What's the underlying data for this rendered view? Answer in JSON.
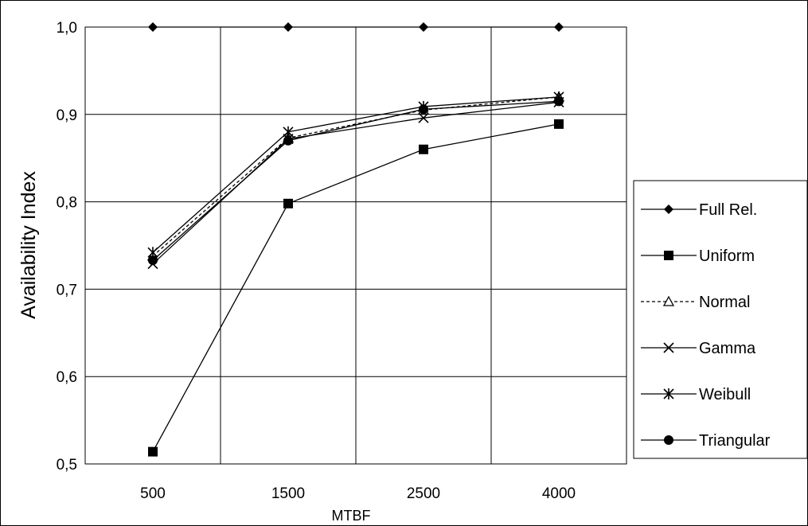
{
  "chart_data": {
    "type": "line",
    "title": "",
    "xlabel": "MTBF",
    "ylabel": "Availability Index",
    "categories": [
      "500",
      "1500",
      "2500",
      "4000"
    ],
    "yticks": [
      "0,5",
      "0,6",
      "0,7",
      "0,8",
      "0,9",
      "1,0"
    ],
    "ylim": [
      0.5,
      1.0
    ],
    "grid": true,
    "legend_position": "right",
    "series": [
      {
        "name": "Full Rel.",
        "marker": "diamond",
        "dash": "solid",
        "values": [
          1.0,
          1.0,
          1.0,
          1.0
        ]
      },
      {
        "name": "Uniform",
        "marker": "square",
        "dash": "solid",
        "values": [
          0.514,
          0.798,
          0.86,
          0.889
        ]
      },
      {
        "name": "Normal",
        "marker": "triangle",
        "dash": "dashed",
        "values": [
          0.738,
          0.873,
          0.905,
          0.92
        ]
      },
      {
        "name": "Gamma",
        "marker": "x",
        "dash": "solid",
        "values": [
          0.729,
          0.872,
          0.896,
          0.914
        ]
      },
      {
        "name": "Weibull",
        "marker": "star",
        "dash": "solid",
        "values": [
          0.742,
          0.88,
          0.909,
          0.92
        ]
      },
      {
        "name": "Triangular",
        "marker": "circle",
        "dash": "solid",
        "values": [
          0.733,
          0.87,
          0.906,
          0.915
        ]
      }
    ]
  }
}
